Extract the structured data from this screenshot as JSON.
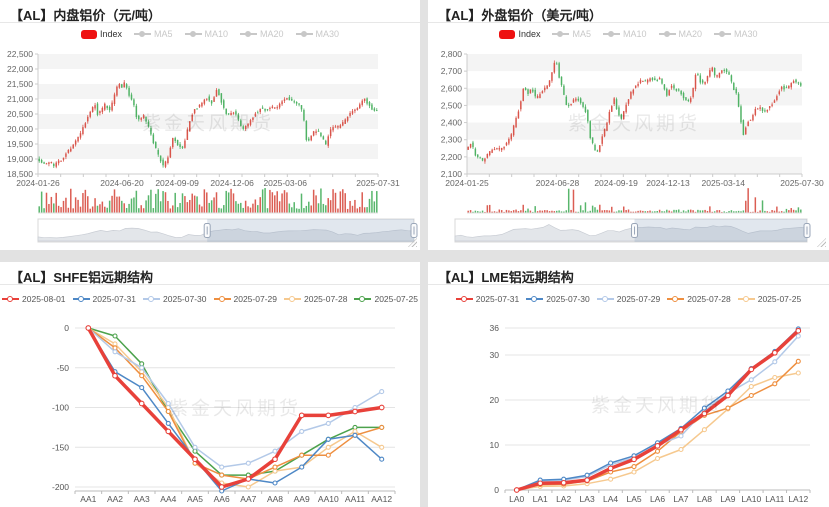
{
  "watermark": "紫金天风期货",
  "chart_data": [
    {
      "id": "shfe-price",
      "type": "candlestick",
      "title": "【AL】内盘铝价（元/吨）",
      "legend": [
        {
          "label": "Index",
          "marker": "swatch",
          "color": "#ee1111",
          "active": true,
          "textColor": "#333333"
        },
        {
          "label": "MA5",
          "marker": "line",
          "color": "#c8c8c8",
          "active": false
        },
        {
          "label": "MA10",
          "marker": "line",
          "color": "#c8c8c8",
          "active": false
        },
        {
          "label": "MA20",
          "marker": "line",
          "color": "#c8c8c8",
          "active": false
        },
        {
          "label": "MA30",
          "marker": "line",
          "color": "#c8c8c8",
          "active": false
        }
      ],
      "ylim": [
        18500,
        22500
      ],
      "ytick_labels": [
        "22,500",
        "22,000",
        "21,500",
        "21,000",
        "20,500",
        "20,000",
        "19,500",
        "19,000",
        "18,500"
      ],
      "xticks": [
        {
          "label": "2024-01-26",
          "f": 0.0
        },
        {
          "label": "2024-06-20",
          "f": 0.247
        },
        {
          "label": "2024-09-09",
          "f": 0.409
        },
        {
          "label": "2024-12-06",
          "f": 0.571
        },
        {
          "label": "2025-03-06",
          "f": 0.727
        },
        {
          "label": "2025-07-31",
          "f": 1.0
        }
      ],
      "up_color": "#d9544a",
      "down_color": "#4fb264",
      "volume_style": "dense",
      "datazoom": {
        "start": 0.45,
        "end": 1.0
      },
      "price_path": [
        [
          0,
          19050
        ],
        [
          0.02,
          18820
        ],
        [
          0.04,
          18900
        ],
        [
          0.05,
          18780
        ],
        [
          0.07,
          18960
        ],
        [
          0.09,
          19250
        ],
        [
          0.11,
          19500
        ],
        [
          0.13,
          19850
        ],
        [
          0.145,
          20300
        ],
        [
          0.16,
          20600
        ],
        [
          0.17,
          20900
        ],
        [
          0.18,
          20450
        ],
        [
          0.2,
          20800
        ],
        [
          0.215,
          20600
        ],
        [
          0.23,
          21200
        ],
        [
          0.24,
          21560
        ],
        [
          0.25,
          21420
        ],
        [
          0.26,
          21560
        ],
        [
          0.27,
          21150
        ],
        [
          0.285,
          20850
        ],
        [
          0.295,
          20300
        ],
        [
          0.315,
          20420
        ],
        [
          0.33,
          20000
        ],
        [
          0.345,
          19480
        ],
        [
          0.36,
          19050
        ],
        [
          0.372,
          18750
        ],
        [
          0.385,
          19000
        ],
        [
          0.4,
          19700
        ],
        [
          0.415,
          19480
        ],
        [
          0.43,
          19320
        ],
        [
          0.445,
          20050
        ],
        [
          0.46,
          20600
        ],
        [
          0.475,
          20750
        ],
        [
          0.49,
          20920
        ],
        [
          0.5,
          21050
        ],
        [
          0.515,
          20880
        ],
        [
          0.53,
          21350
        ],
        [
          0.545,
          20850
        ],
        [
          0.56,
          20420
        ],
        [
          0.575,
          20620
        ],
        [
          0.59,
          20380
        ],
        [
          0.605,
          19980
        ],
        [
          0.62,
          20150
        ],
        [
          0.64,
          20480
        ],
        [
          0.66,
          20700
        ],
        [
          0.675,
          20620
        ],
        [
          0.69,
          20760
        ],
        [
          0.705,
          20680
        ],
        [
          0.72,
          20900
        ],
        [
          0.735,
          21020
        ],
        [
          0.75,
          20950
        ],
        [
          0.765,
          20880
        ],
        [
          0.775,
          20820
        ],
        [
          0.785,
          20300
        ],
        [
          0.795,
          19480
        ],
        [
          0.81,
          19880
        ],
        [
          0.825,
          19950
        ],
        [
          0.84,
          19720
        ],
        [
          0.85,
          19480
        ],
        [
          0.862,
          19950
        ],
        [
          0.875,
          20060
        ],
        [
          0.89,
          20080
        ],
        [
          0.905,
          20280
        ],
        [
          0.92,
          20500
        ],
        [
          0.935,
          20600
        ],
        [
          0.95,
          20780
        ],
        [
          0.962,
          21020
        ],
        [
          0.975,
          20820
        ],
        [
          0.99,
          20620
        ],
        [
          1,
          20600
        ]
      ]
    },
    {
      "id": "lme-price",
      "type": "candlestick",
      "title": "【AL】外盘铝价（美元/吨）",
      "legend": [
        {
          "label": "Index",
          "marker": "swatch",
          "color": "#ee1111",
          "active": true,
          "textColor": "#333333"
        },
        {
          "label": "MA5",
          "marker": "line",
          "color": "#c8c8c8",
          "active": false
        },
        {
          "label": "MA10",
          "marker": "line",
          "color": "#c8c8c8",
          "active": false
        },
        {
          "label": "MA20",
          "marker": "line",
          "color": "#c8c8c8",
          "active": false
        },
        {
          "label": "MA30",
          "marker": "line",
          "color": "#c8c8c8",
          "active": false
        }
      ],
      "ylim": [
        2100,
        2800
      ],
      "ytick_labels": [
        "2,800",
        "2,700",
        "2,600",
        "2,500",
        "2,400",
        "2,300",
        "2,200",
        "2,100"
      ],
      "xticks": [
        {
          "label": "2024-01-25",
          "f": 0.0
        },
        {
          "label": "2024-06-28",
          "f": 0.27
        },
        {
          "label": "2024-09-19",
          "f": 0.445
        },
        {
          "label": "2024-12-13",
          "f": 0.6
        },
        {
          "label": "2025-03-14",
          "f": 0.765
        },
        {
          "label": "2025-07-30",
          "f": 1.0
        }
      ],
      "up_color": "#d9544a",
      "down_color": "#4fb264",
      "volume_style": "spiky",
      "datazoom": {
        "start": 0.51,
        "end": 1.0
      },
      "price_path": [
        [
          0,
          2240
        ],
        [
          0.015,
          2285
        ],
        [
          0.03,
          2205
        ],
        [
          0.05,
          2180
        ],
        [
          0.065,
          2215
        ],
        [
          0.08,
          2250
        ],
        [
          0.1,
          2245
        ],
        [
          0.12,
          2270
        ],
        [
          0.135,
          2320
        ],
        [
          0.15,
          2430
        ],
        [
          0.163,
          2505
        ],
        [
          0.173,
          2620
        ],
        [
          0.185,
          2560
        ],
        [
          0.196,
          2605
        ],
        [
          0.21,
          2535
        ],
        [
          0.225,
          2585
        ],
        [
          0.24,
          2600
        ],
        [
          0.252,
          2650
        ],
        [
          0.262,
          2725
        ],
        [
          0.268,
          2790
        ],
        [
          0.275,
          2690
        ],
        [
          0.288,
          2595
        ],
        [
          0.3,
          2500
        ],
        [
          0.315,
          2512
        ],
        [
          0.33,
          2548
        ],
        [
          0.345,
          2515
        ],
        [
          0.36,
          2455
        ],
        [
          0.372,
          2310
        ],
        [
          0.385,
          2245
        ],
        [
          0.392,
          2225
        ],
        [
          0.405,
          2300
        ],
        [
          0.42,
          2395
        ],
        [
          0.432,
          2480
        ],
        [
          0.442,
          2540
        ],
        [
          0.453,
          2465
        ],
        [
          0.465,
          2415
        ],
        [
          0.48,
          2520
        ],
        [
          0.495,
          2580
        ],
        [
          0.51,
          2625
        ],
        [
          0.525,
          2650
        ],
        [
          0.54,
          2638
        ],
        [
          0.552,
          2662
        ],
        [
          0.565,
          2640
        ],
        [
          0.578,
          2655
        ],
        [
          0.59,
          2610
        ],
        [
          0.6,
          2560
        ],
        [
          0.612,
          2620
        ],
        [
          0.625,
          2598
        ],
        [
          0.64,
          2575
        ],
        [
          0.652,
          2545
        ],
        [
          0.663,
          2518
        ],
        [
          0.675,
          2555
        ],
        [
          0.687,
          2700
        ],
        [
          0.7,
          2640
        ],
        [
          0.712,
          2625
        ],
        [
          0.725,
          2688
        ],
        [
          0.735,
          2730
        ],
        [
          0.745,
          2655
        ],
        [
          0.758,
          2695
        ],
        [
          0.77,
          2710
        ],
        [
          0.782,
          2695
        ],
        [
          0.795,
          2620
        ],
        [
          0.808,
          2560
        ],
        [
          0.818,
          2450
        ],
        [
          0.828,
          2330
        ],
        [
          0.84,
          2400
        ],
        [
          0.852,
          2425
        ],
        [
          0.865,
          2478
        ],
        [
          0.878,
          2495
        ],
        [
          0.89,
          2462
        ],
        [
          0.902,
          2482
        ],
        [
          0.915,
          2510
        ],
        [
          0.93,
          2565
        ],
        [
          0.942,
          2615
        ],
        [
          0.953,
          2595
        ],
        [
          0.965,
          2612
        ],
        [
          0.978,
          2648
        ],
        [
          0.99,
          2635
        ],
        [
          1,
          2608
        ]
      ]
    },
    {
      "id": "shfe-curve",
      "type": "line",
      "title": "【AL】SHFE铝远期结构",
      "categories": [
        "AA1",
        "AA2",
        "AA3",
        "AA4",
        "AA5",
        "AA6",
        "AA7",
        "AA8",
        "AA9",
        "AA10",
        "AA11",
        "AA12"
      ],
      "ylim": [
        -200,
        0
      ],
      "yticks": [
        {
          "v": 0,
          "label": "0"
        },
        {
          "v": -50,
          "label": "-50"
        },
        {
          "v": -100,
          "label": "-100"
        },
        {
          "v": -150,
          "label": "-150"
        },
        {
          "v": -200,
          "label": "-200"
        }
      ],
      "series": [
        {
          "name": "2025-08-01",
          "color": "#e8413a",
          "width": 3.5,
          "values": [
            0,
            -60,
            -95,
            -130,
            -165,
            -200,
            -190,
            -165,
            -110,
            -110,
            -105,
            -100
          ]
        },
        {
          "name": "2025-07-31",
          "color": "#4e88c6",
          "width": 1.5,
          "values": [
            0,
            -55,
            -75,
            -120,
            -165,
            -205,
            -190,
            -195,
            -175,
            -140,
            -135,
            -165
          ]
        },
        {
          "name": "2025-07-30",
          "color": "#b3c9e8",
          "width": 1.5,
          "values": [
            0,
            -30,
            -50,
            -95,
            -150,
            -175,
            -170,
            -155,
            -130,
            -120,
            -100,
            -80
          ]
        },
        {
          "name": "2025-07-29",
          "color": "#ee8f40",
          "width": 1.5,
          "values": [
            0,
            -25,
            -60,
            -105,
            -170,
            -185,
            -190,
            -175,
            -160,
            -160,
            -135,
            -125
          ]
        },
        {
          "name": "2025-07-28",
          "color": "#f6c98f",
          "width": 1.5,
          "values": [
            0,
            -20,
            -55,
            -100,
            -170,
            -195,
            -200,
            -180,
            -175,
            -150,
            -130,
            -150
          ]
        },
        {
          "name": "2025-07-25",
          "color": "#4ca24c",
          "width": 1.5,
          "values": [
            0,
            -10,
            -45,
            -105,
            -155,
            -185,
            -185,
            -180,
            -160,
            -140,
            -125,
            -125
          ]
        }
      ]
    },
    {
      "id": "lme-curve",
      "type": "line",
      "title": "【AL】LME铝远期结构",
      "categories": [
        "LA0",
        "LA1",
        "LA2",
        "LA3",
        "LA4",
        "LA5",
        "LA6",
        "LA7",
        "LA8",
        "LA9",
        "LA10",
        "LA11",
        "LA12"
      ],
      "ylim": [
        0,
        36
      ],
      "yticks": [
        {
          "v": 36,
          "label": "36"
        },
        {
          "v": 30,
          "label": "30"
        },
        {
          "v": 20,
          "label": "20"
        },
        {
          "v": 10,
          "label": "10"
        },
        {
          "v": 0,
          "label": "0"
        }
      ],
      "series": [
        {
          "name": "2025-07-31",
          "color": "#e8413a",
          "width": 3.5,
          "values": [
            0,
            1.5,
            1.6,
            2.2,
            4.8,
            6.8,
            9.8,
            13.4,
            17,
            21,
            26.8,
            30.5,
            35.4
          ]
        },
        {
          "name": "2025-07-30",
          "color": "#4e88c6",
          "width": 1.5,
          "values": [
            0,
            2.2,
            2.4,
            3.3,
            6,
            7.6,
            10.5,
            13.7,
            18.2,
            22,
            27,
            30.8,
            35.8
          ]
        },
        {
          "name": "2025-07-29",
          "color": "#b3c9e8",
          "width": 1.5,
          "values": [
            0,
            2,
            2.2,
            3,
            5.6,
            7.2,
            10,
            12,
            17.6,
            21.5,
            24.5,
            28.5,
            34.2
          ]
        },
        {
          "name": "2025-07-28",
          "color": "#ee8f40",
          "width": 1.5,
          "values": [
            0,
            1.2,
            1.3,
            2,
            4,
            5.2,
            8.6,
            13,
            16.6,
            18.2,
            21,
            23.6,
            28.6
          ]
        },
        {
          "name": "2025-07-25",
          "color": "#f6c98f",
          "width": 1.5,
          "values": [
            0,
            0.8,
            0.9,
            1.4,
            2.4,
            4,
            7,
            9,
            13.4,
            18,
            23,
            25,
            26
          ]
        }
      ]
    }
  ]
}
